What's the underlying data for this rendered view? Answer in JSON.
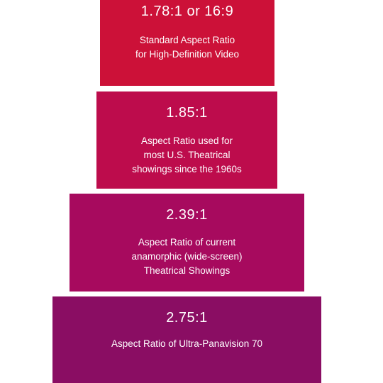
{
  "tiers": [
    {
      "ratio": "1.78:1 or 16:9",
      "description": "Standard Aspect Ratio\nfor High-Definition Video",
      "color": "#cc1138"
    },
    {
      "ratio": "1.85:1",
      "description": "Aspect Ratio used for\nmost U.S. Theatrical\nshowings since the 1960s",
      "color": "#bd0c4c"
    },
    {
      "ratio": "2.39:1",
      "description": "Aspect Ratio of current\nanamorphic (wide-screen)\nTheatrical Showings",
      "color": "#a70a5e"
    },
    {
      "ratio": "2.75:1",
      "description": "Aspect Ratio of Ultra-Panavision 70",
      "color": "#8a0d63"
    }
  ]
}
